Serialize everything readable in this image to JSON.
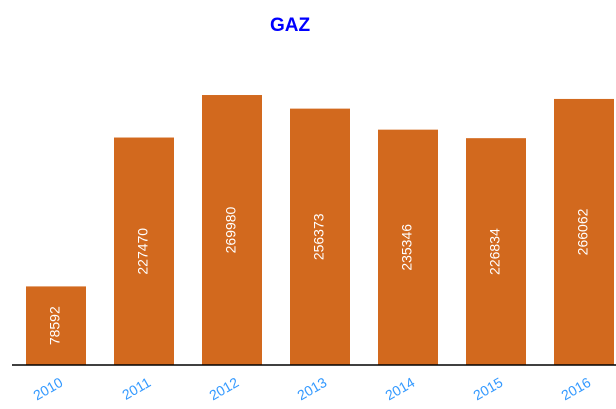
{
  "chart_data": {
    "type": "bar",
    "title": "GAZ",
    "categories": [
      "2010",
      "2011",
      "2012",
      "2013",
      "2014",
      "2015",
      "2016"
    ],
    "values": [
      78592,
      227470,
      269980,
      256373,
      235346,
      226834,
      266062
    ],
    "color": "#d2691e",
    "ylim": [
      0,
      300000
    ]
  }
}
